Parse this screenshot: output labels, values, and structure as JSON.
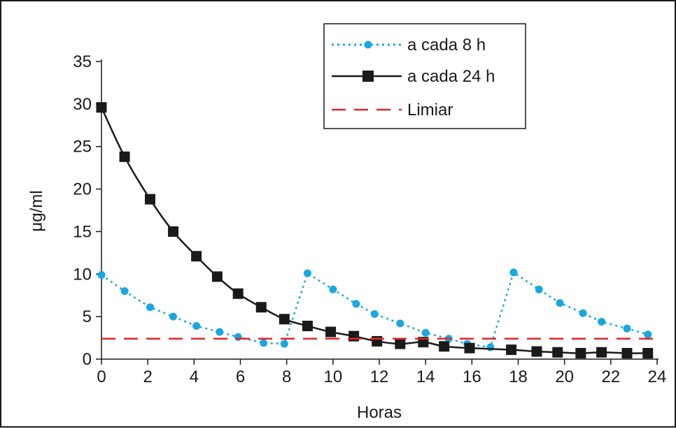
{
  "chart_data": {
    "type": "line",
    "xlabel": "Horas",
    "ylabel": "μg/ml",
    "xlim": [
      0,
      24
    ],
    "ylim": [
      0,
      35
    ],
    "xticks": [
      0,
      2,
      4,
      6,
      8,
      10,
      12,
      14,
      16,
      18,
      20,
      22,
      24
    ],
    "yticks": [
      0,
      5,
      10,
      15,
      20,
      25,
      30,
      35
    ],
    "grid": false,
    "legend_position": "top-right",
    "legend": [
      "a cada 8 h",
      "a cada 24 h",
      "Limiar"
    ],
    "series": [
      {
        "name": "a cada 8 h",
        "style": "dotted-line-circle-markers",
        "color": "#1aa7e0",
        "points": [
          [
            0,
            9.9
          ],
          [
            1,
            8.0
          ],
          [
            2.1,
            6.1
          ],
          [
            3.1,
            5.0
          ],
          [
            4.1,
            3.9
          ],
          [
            5.1,
            3.2
          ],
          [
            5.9,
            2.6
          ],
          [
            7.0,
            1.9
          ],
          [
            7.9,
            1.8
          ],
          [
            8.9,
            10.1
          ],
          [
            10.0,
            8.2
          ],
          [
            11.0,
            6.5
          ],
          [
            11.8,
            5.3
          ],
          [
            12.9,
            4.2
          ],
          [
            14.0,
            3.1
          ],
          [
            15.0,
            2.4
          ],
          [
            15.8,
            1.8
          ],
          [
            16.8,
            1.4
          ],
          [
            17.8,
            10.2
          ],
          [
            18.9,
            8.2
          ],
          [
            19.8,
            6.6
          ],
          [
            20.8,
            5.4
          ],
          [
            21.6,
            4.4
          ],
          [
            22.7,
            3.6
          ],
          [
            23.6,
            2.9
          ]
        ]
      },
      {
        "name": "a cada 24 h",
        "style": "solid-line-square-markers",
        "color": "#1a1a1a",
        "points": [
          [
            0,
            29.6
          ],
          [
            1,
            23.8
          ],
          [
            2.1,
            18.8
          ],
          [
            3.1,
            15.0
          ],
          [
            4.1,
            12.1
          ],
          [
            5.0,
            9.7
          ],
          [
            5.9,
            7.7
          ],
          [
            6.9,
            6.1
          ],
          [
            7.9,
            4.7
          ],
          [
            8.9,
            3.9
          ],
          [
            9.9,
            3.2
          ],
          [
            10.9,
            2.7
          ],
          [
            11.9,
            2.1
          ],
          [
            12.9,
            1.8
          ],
          [
            13.9,
            2.0
          ],
          [
            14.8,
            1.5
          ],
          [
            15.9,
            1.3
          ],
          [
            17.7,
            1.1
          ],
          [
            18.8,
            0.9
          ],
          [
            19.7,
            0.8
          ],
          [
            20.7,
            0.7
          ],
          [
            21.6,
            0.8
          ],
          [
            22.7,
            0.7
          ],
          [
            23.6,
            0.7
          ]
        ]
      },
      {
        "name": "Limiar",
        "style": "dashed-line",
        "color": "#e0262b",
        "points": [
          [
            0,
            2.4
          ],
          [
            24,
            2.4
          ]
        ]
      }
    ]
  }
}
